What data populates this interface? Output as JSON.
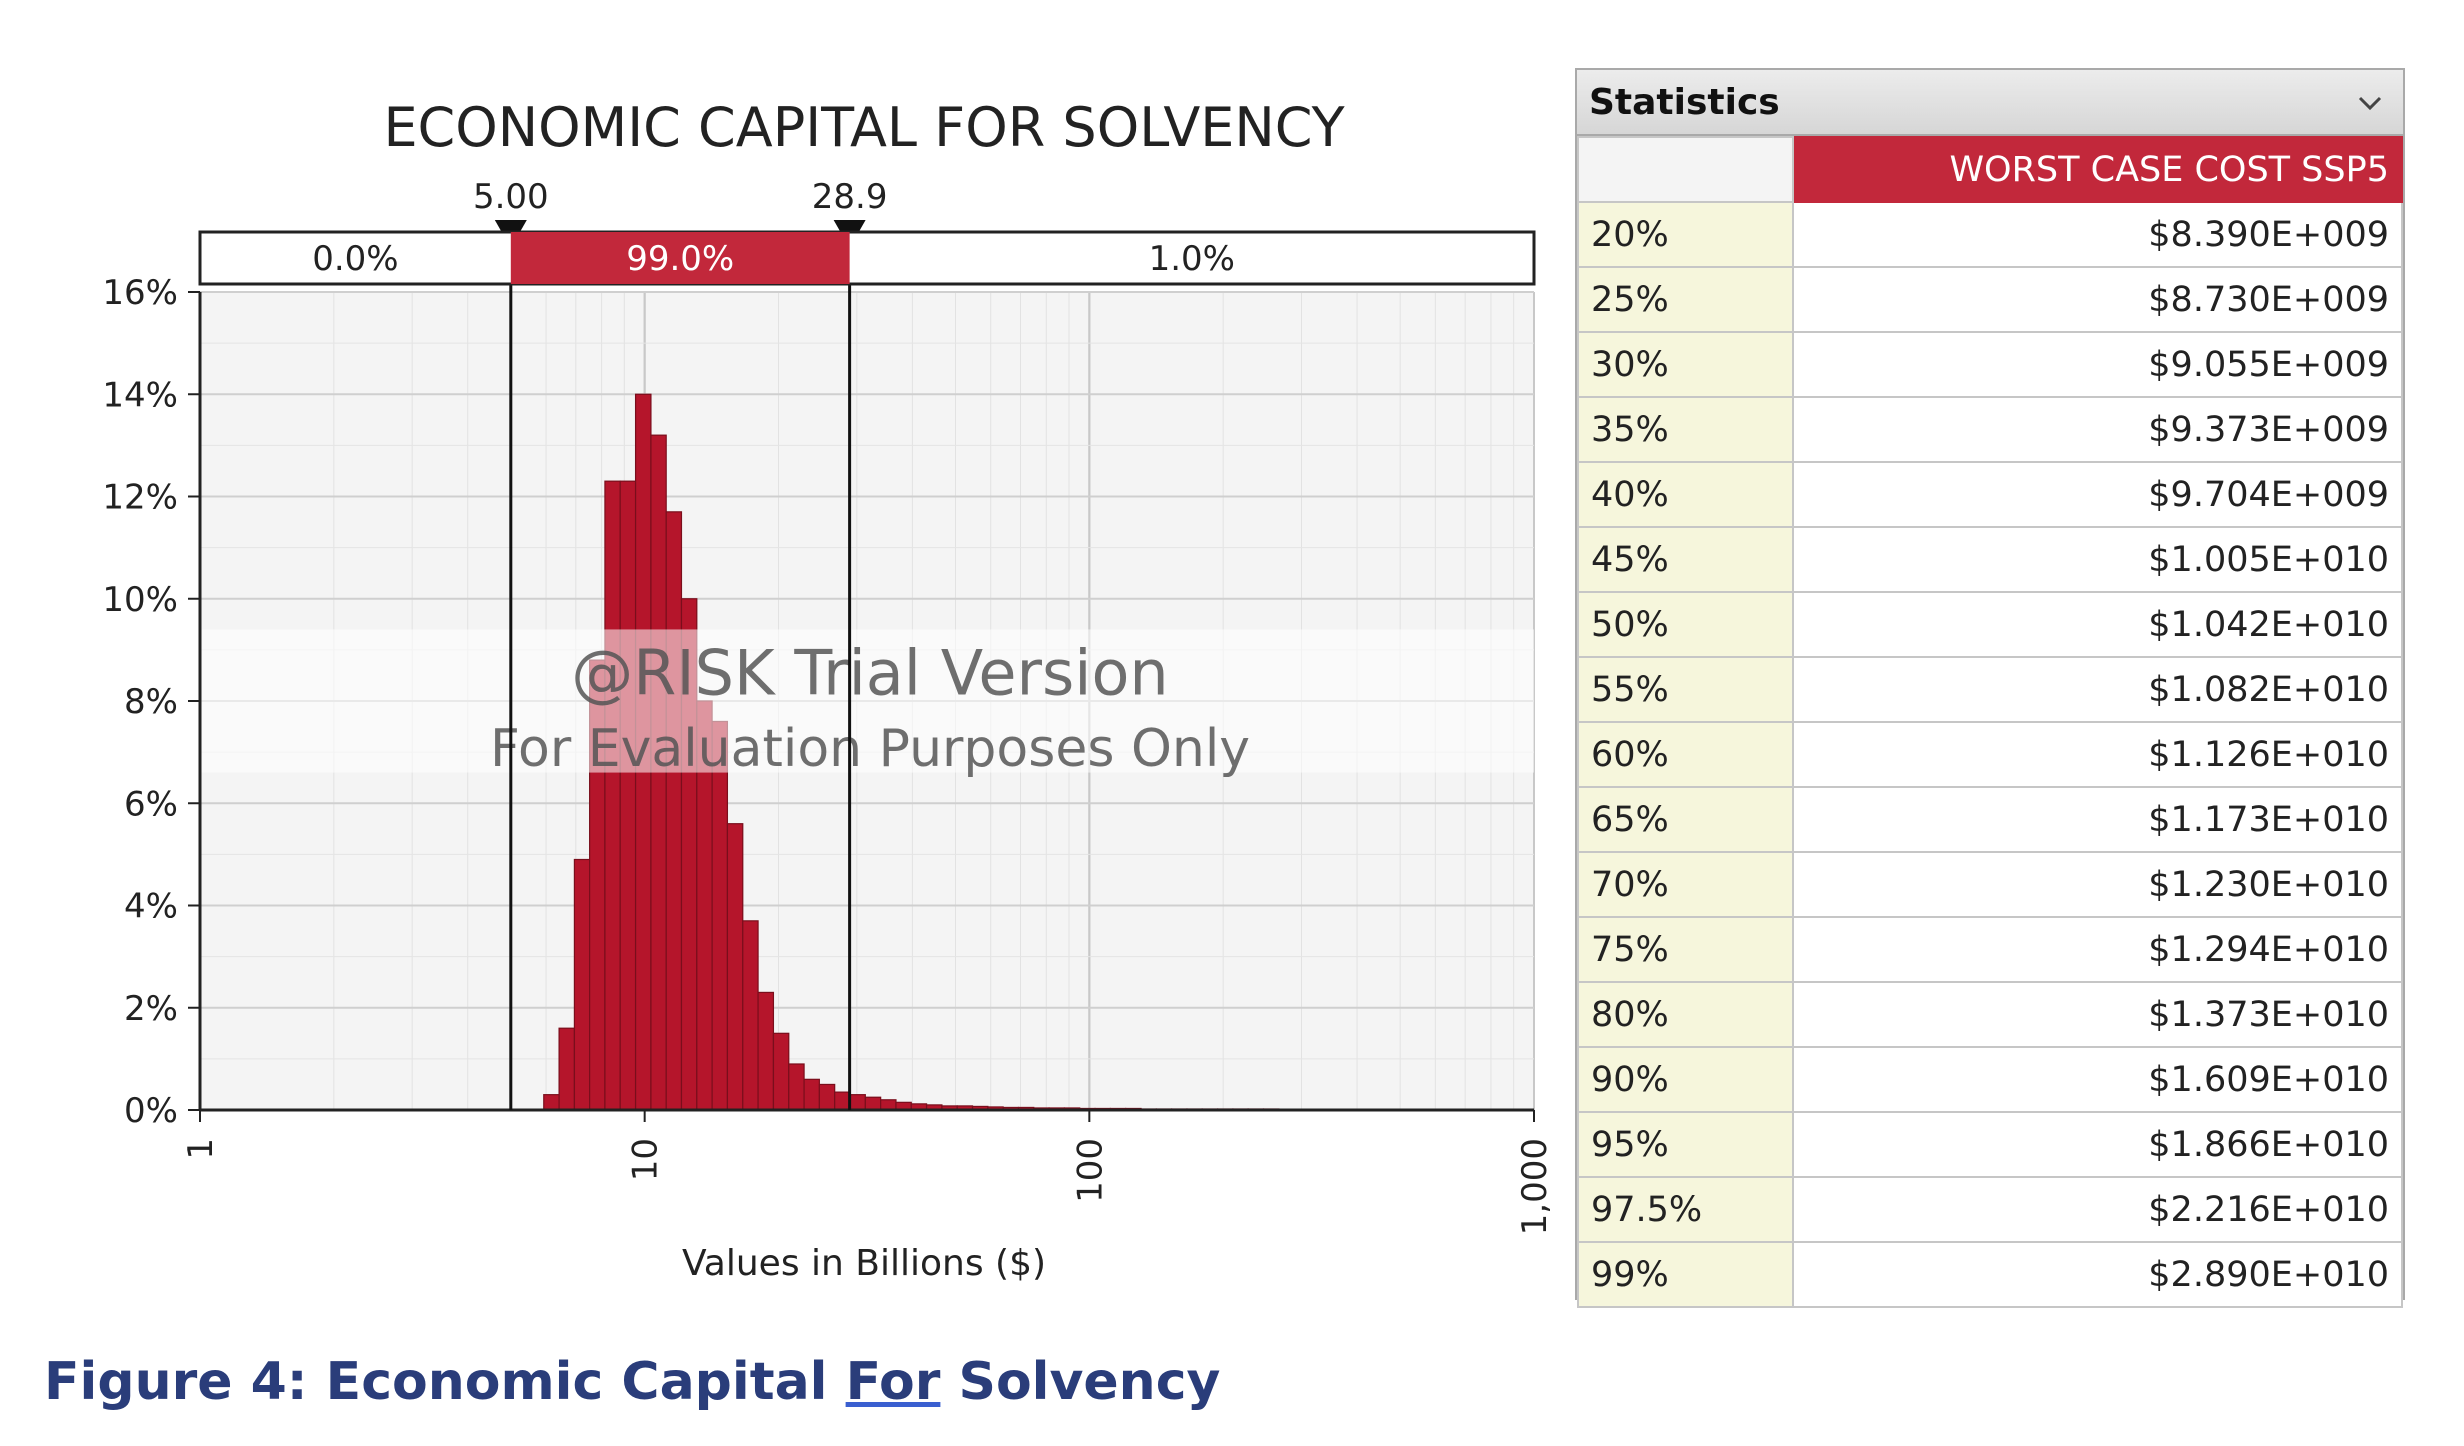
{
  "chart_data": {
    "type": "bar",
    "title": "ECONOMIC CAPITAL FOR SOLVENCY",
    "xlabel": "Values in Billions ($)",
    "x_scale": "log",
    "xlim": [
      1,
      1000
    ],
    "ylim": [
      0,
      16
    ],
    "x_ticks": [
      "1",
      "10",
      "100",
      "1,000"
    ],
    "y_ticks": [
      "0%",
      "2%",
      "4%",
      "6%",
      "8%",
      "10%",
      "12%",
      "14%",
      "16%"
    ],
    "grid": true,
    "bar_color": "#b5152b",
    "delimiters": [
      {
        "value": 5,
        "label": "5.00"
      },
      {
        "value": 28.9,
        "label": "28.9"
      }
    ],
    "regions": [
      "0.0%",
      "99.0%",
      "1.0%"
    ],
    "watermark": [
      "@RISK Trial Version",
      "For Evaluation Purposes Only"
    ],
    "bins": [
      {
        "x0": 5.93,
        "x1": 6.42,
        "y": 0.3
      },
      {
        "x0": 6.42,
        "x1": 6.95,
        "y": 1.6
      },
      {
        "x0": 6.95,
        "x1": 7.52,
        "y": 4.9
      },
      {
        "x0": 7.52,
        "x1": 8.14,
        "y": 8.8
      },
      {
        "x0": 8.14,
        "x1": 8.81,
        "y": 12.3
      },
      {
        "x0": 8.81,
        "x1": 9.54,
        "y": 12.3
      },
      {
        "x0": 9.54,
        "x1": 10.33,
        "y": 14.0
      },
      {
        "x0": 10.33,
        "x1": 11.18,
        "y": 13.2
      },
      {
        "x0": 11.18,
        "x1": 12.1,
        "y": 11.7
      },
      {
        "x0": 12.1,
        "x1": 13.1,
        "y": 10.0
      },
      {
        "x0": 13.1,
        "x1": 14.18,
        "y": 8.0
      },
      {
        "x0": 14.18,
        "x1": 15.35,
        "y": 7.6
      },
      {
        "x0": 15.35,
        "x1": 16.62,
        "y": 5.6
      },
      {
        "x0": 16.62,
        "x1": 17.99,
        "y": 3.7
      },
      {
        "x0": 17.99,
        "x1": 19.48,
        "y": 2.3
      },
      {
        "x0": 19.48,
        "x1": 21.09,
        "y": 1.5
      },
      {
        "x0": 21.09,
        "x1": 22.83,
        "y": 0.9
      },
      {
        "x0": 22.83,
        "x1": 24.71,
        "y": 0.6
      },
      {
        "x0": 24.71,
        "x1": 26.75,
        "y": 0.5
      },
      {
        "x0": 26.75,
        "x1": 28.96,
        "y": 0.35
      },
      {
        "x0": 28.96,
        "x1": 31.35,
        "y": 0.3
      },
      {
        "x0": 31.35,
        "x1": 33.94,
        "y": 0.25
      },
      {
        "x0": 33.94,
        "x1": 36.74,
        "y": 0.2
      },
      {
        "x0": 36.74,
        "x1": 39.77,
        "y": 0.15
      },
      {
        "x0": 39.77,
        "x1": 43.05,
        "y": 0.12
      },
      {
        "x0": 43.05,
        "x1": 46.61,
        "y": 0.1
      },
      {
        "x0": 46.61,
        "x1": 50.45,
        "y": 0.08
      },
      {
        "x0": 50.45,
        "x1": 54.62,
        "y": 0.08
      },
      {
        "x0": 54.62,
        "x1": 59.13,
        "y": 0.07
      },
      {
        "x0": 59.13,
        "x1": 64.0,
        "y": 0.06
      },
      {
        "x0": 64.0,
        "x1": 69.29,
        "y": 0.05
      },
      {
        "x0": 69.29,
        "x1": 75.0,
        "y": 0.05
      },
      {
        "x0": 75.0,
        "x1": 81.19,
        "y": 0.04
      },
      {
        "x0": 81.19,
        "x1": 87.9,
        "y": 0.04
      },
      {
        "x0": 87.9,
        "x1": 95.15,
        "y": 0.04
      },
      {
        "x0": 95.15,
        "x1": 103.0,
        "y": 0.03
      },
      {
        "x0": 103.0,
        "x1": 111.5,
        "y": 0.03
      },
      {
        "x0": 111.5,
        "x1": 120.7,
        "y": 0.03
      },
      {
        "x0": 120.7,
        "x1": 130.7,
        "y": 0.03
      },
      {
        "x0": 130.7,
        "x1": 141.5,
        "y": 0.02
      },
      {
        "x0": 141.5,
        "x1": 153.1,
        "y": 0.02
      },
      {
        "x0": 153.1,
        "x1": 165.8,
        "y": 0.02
      },
      {
        "x0": 165.8,
        "x1": 179.4,
        "y": 0.02
      },
      {
        "x0": 179.4,
        "x1": 194.3,
        "y": 0.02
      },
      {
        "x0": 194.3,
        "x1": 210.3,
        "y": 0.02
      },
      {
        "x0": 210.3,
        "x1": 227.6,
        "y": 0.02
      },
      {
        "x0": 227.6,
        "x1": 246.4,
        "y": 0.02
      },
      {
        "x0": 246.4,
        "x1": 266.8,
        "y": 0.02
      },
      {
        "x0": 266.8,
        "x1": 288.8,
        "y": 0.01
      },
      {
        "x0": 288.8,
        "x1": 312.6,
        "y": 0.01
      },
      {
        "x0": 312.6,
        "x1": 338.4,
        "y": 0.01
      },
      {
        "x0": 338.4,
        "x1": 366.4,
        "y": 0.01
      },
      {
        "x0": 366.4,
        "x1": 396.6,
        "y": 0.01
      },
      {
        "x0": 396.6,
        "x1": 429.3,
        "y": 0.01
      },
      {
        "x0": 429.3,
        "x1": 464.8,
        "y": 0.01
      },
      {
        "x0": 464.8,
        "x1": 503.1,
        "y": 0.01
      },
      {
        "x0": 503.1,
        "x1": 544.6,
        "y": 0.01
      }
    ]
  },
  "stats": {
    "title": "Statistics",
    "column_header": "WORST CASE COST SSP5",
    "rows": [
      {
        "label": "20%",
        "value": "$8.390E+009"
      },
      {
        "label": "25%",
        "value": "$8.730E+009"
      },
      {
        "label": "30%",
        "value": "$9.055E+009"
      },
      {
        "label": "35%",
        "value": "$9.373E+009"
      },
      {
        "label": "40%",
        "value": "$9.704E+009"
      },
      {
        "label": "45%",
        "value": "$1.005E+010"
      },
      {
        "label": "50%",
        "value": "$1.042E+010"
      },
      {
        "label": "55%",
        "value": "$1.082E+010"
      },
      {
        "label": "60%",
        "value": "$1.126E+010"
      },
      {
        "label": "65%",
        "value": "$1.173E+010"
      },
      {
        "label": "70%",
        "value": "$1.230E+010"
      },
      {
        "label": "75%",
        "value": "$1.294E+010"
      },
      {
        "label": "80%",
        "value": "$1.373E+010"
      },
      {
        "label": "90%",
        "value": "$1.609E+010"
      },
      {
        "label": "95%",
        "value": "$1.866E+010"
      },
      {
        "label": "97.5%",
        "value": "$2.216E+010"
      },
      {
        "label": "99%",
        "value": "$2.890E+010"
      }
    ]
  },
  "caption": {
    "prefix": "Figure 4: Economic Capital ",
    "underlined": "For",
    "suffix": " Solvency"
  },
  "colors": {
    "accent": "#c2283b",
    "caption": "#2a3d7a",
    "stat_label_bg": "#f6f6dc"
  },
  "icons": {
    "dropdown": "chevron-down-icon",
    "delimiter": "triangle-down-icon"
  }
}
